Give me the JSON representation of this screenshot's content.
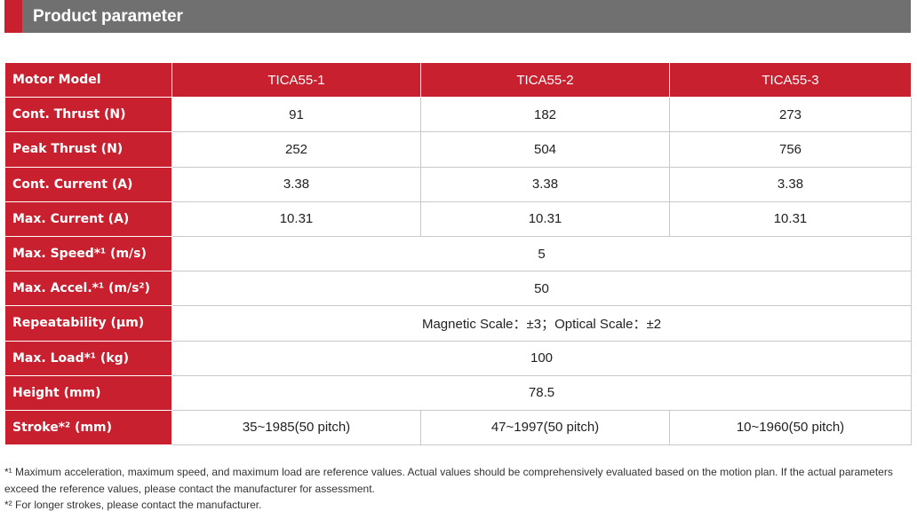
{
  "header": {
    "title": "Product parameter"
  },
  "table": {
    "rows": [
      [
        "Motor Model",
        "TICA55-1",
        "TICA55-2",
        "TICA55-3"
      ],
      [
        "Cont. Thrust (N)",
        "91",
        "182",
        "273"
      ],
      [
        "Peak Thrust (N)",
        "252",
        "504",
        "756"
      ],
      [
        "Cont. Current (A)",
        "3.38",
        "3.38",
        "3.38"
      ],
      [
        "Max. Current (A)",
        "10.31",
        "10.31",
        "10.31"
      ],
      [
        "Max. Speed*¹ (m/s)",
        "5"
      ],
      [
        "Max. Accel.*¹ (m/s²)",
        "50"
      ],
      [
        "Repeatability (μm)",
        "Magnetic Scale：±3；Optical Scale：±2"
      ],
      [
        "Max. Load*¹ (kg)",
        "100"
      ],
      [
        "Height (mm)",
        "78.5"
      ],
      [
        "Stroke*² (mm)",
        "35~1985(50 pitch)",
        "47~1997(50 pitch)",
        "10~1960(50 pitch)"
      ]
    ]
  },
  "notes": [
    "*¹ Maximum acceleration, maximum speed, and maximum load are reference values. Actual values should be comprehensively evaluated based on the motion plan. If the actual parameters exceed the reference values, please contact the manufacturer for assessment.",
    "*² For longer strokes, please contact the manufacturer."
  ]
}
